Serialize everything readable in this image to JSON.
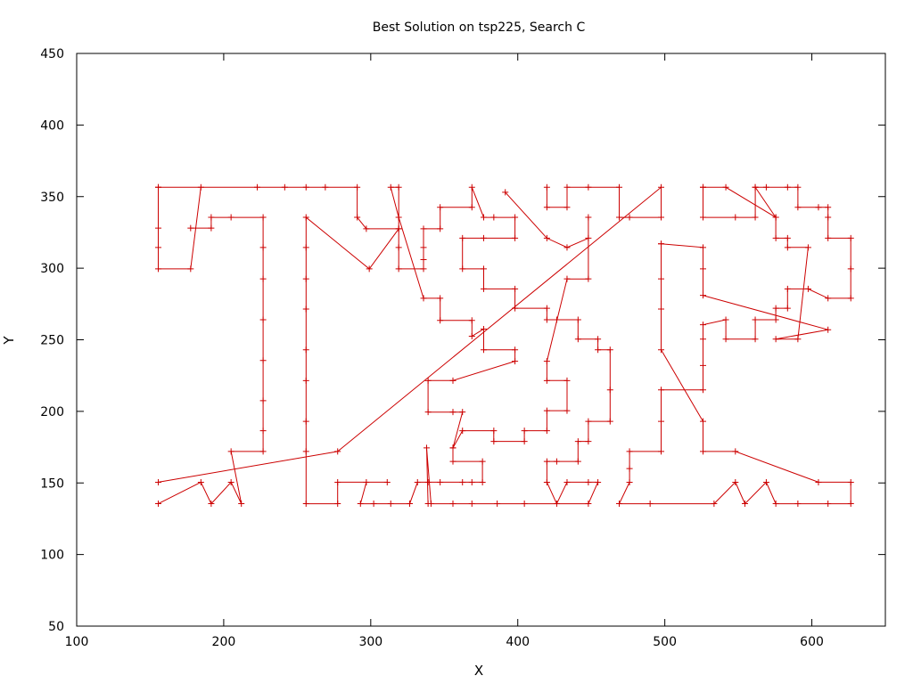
{
  "chart_data": {
    "type": "line",
    "title": "Best Solution on tsp225, Search C",
    "xlabel": "X",
    "ylabel": "Y",
    "xlim": [
      100,
      650
    ],
    "ylim": [
      50,
      450
    ],
    "xticks": [
      100,
      200,
      300,
      400,
      500,
      600
    ],
    "yticks": [
      50,
      100,
      150,
      200,
      250,
      300,
      350,
      400,
      450
    ],
    "grid": false,
    "legend": "none",
    "colors": {
      "tour": "#cc0000",
      "axis": "#000000"
    },
    "tour_segments": [
      [
        [
          155.5,
          356.5
        ],
        [
          222.8,
          356.5
        ],
        [
          241.5,
          356.5
        ],
        [
          256.0,
          356.5
        ],
        [
          269.1,
          356.5
        ],
        [
          290.8,
          356.5
        ],
        [
          290.8,
          335.5
        ],
        [
          297.0,
          327.5
        ],
        [
          319.0,
          327.5
        ],
        [
          319.0,
          356.5
        ],
        [
          313.6,
          356.5
        ],
        [
          319.0,
          335.5
        ],
        [
          335.9,
          279.0
        ],
        [
          347.2,
          279.0
        ],
        [
          347.2,
          263.5
        ],
        [
          368.8,
          263.5
        ],
        [
          368.8,
          252.5
        ],
        [
          376.8,
          257.5
        ],
        [
          376.8,
          243.0
        ],
        [
          398.1,
          243.0
        ],
        [
          398.1,
          235.0
        ],
        [
          355.9,
          221.5
        ],
        [
          339.0,
          221.5
        ],
        [
          339.0,
          199.5
        ],
        [
          355.9,
          199.5
        ],
        [
          362.4,
          199.5
        ],
        [
          355.9,
          174.5
        ],
        [
          355.9,
          165.0
        ],
        [
          376.0,
          165.0
        ],
        [
          376.0,
          150.5
        ],
        [
          368.8,
          150.5
        ],
        [
          362.4,
          150.5
        ],
        [
          347.2,
          150.5
        ],
        [
          339.0,
          150.5
        ],
        [
          331.8,
          150.5
        ],
        [
          326.5,
          135.5
        ],
        [
          313.6,
          135.5
        ],
        [
          302.0,
          135.5
        ],
        [
          293.0,
          135.5
        ],
        [
          297.0,
          150.5
        ],
        [
          311.2,
          150.5
        ],
        [
          277.5,
          150.5
        ],
        [
          277.5,
          135.5
        ],
        [
          256.0,
          135.5
        ],
        [
          256.0,
          172.0
        ],
        [
          256.0,
          193.0
        ],
        [
          256.0,
          221.5
        ],
        [
          256.0,
          243.0
        ],
        [
          256.0,
          271.5
        ],
        [
          256.0,
          292.5
        ],
        [
          256.0,
          314.5
        ],
        [
          256.0,
          335.5
        ],
        [
          299.0,
          299.5
        ],
        [
          319.0,
          327.5
        ],
        [
          319.0,
          314.5
        ],
        [
          319.0,
          299.5
        ],
        [
          335.9,
          299.5
        ],
        [
          335.9,
          306.0
        ],
        [
          335.9,
          314.5
        ],
        [
          335.9,
          327.5
        ],
        [
          347.2,
          327.5
        ],
        [
          347.2,
          342.5
        ],
        [
          368.8,
          342.5
        ],
        [
          368.8,
          356.5
        ],
        [
          376.8,
          335.5
        ],
        [
          383.7,
          335.5
        ],
        [
          398.1,
          335.5
        ],
        [
          398.1,
          321.0
        ],
        [
          376.8,
          321.0
        ],
        [
          362.4,
          321.0
        ],
        [
          362.4,
          299.5
        ],
        [
          376.8,
          299.5
        ],
        [
          376.8,
          285.5
        ],
        [
          398.1,
          285.5
        ],
        [
          398.1,
          272.0
        ],
        [
          419.8,
          272.0
        ],
        [
          419.8,
          264.0
        ],
        [
          426.5,
          264.0
        ],
        [
          441.0,
          264.0
        ],
        [
          441.0,
          250.5
        ],
        [
          454.5,
          250.5
        ],
        [
          454.5,
          243.0
        ],
        [
          462.8,
          243.0
        ],
        [
          462.8,
          215.0
        ],
        [
          462.8,
          193.0
        ],
        [
          448.0,
          193.0
        ],
        [
          448.0,
          179.0
        ],
        [
          441.0,
          179.0
        ],
        [
          441.0,
          165.0
        ],
        [
          426.5,
          165.0
        ],
        [
          419.8,
          165.0
        ],
        [
          419.8,
          150.5
        ],
        [
          426.5,
          135.5
        ],
        [
          433.5,
          150.5
        ],
        [
          448.0,
          150.5
        ],
        [
          454.5,
          150.5
        ],
        [
          448.0,
          135.5
        ],
        [
          404.5,
          135.5
        ],
        [
          386.0,
          135.5
        ],
        [
          368.8,
          135.5
        ],
        [
          355.9,
          135.5
        ],
        [
          341.0,
          135.5
        ],
        [
          338.0,
          174.5
        ],
        [
          339.0,
          135.5
        ]
      ],
      [
        [
          155.5,
          356.5
        ],
        [
          155.5,
          328.0
        ],
        [
          155.5,
          314.5
        ],
        [
          155.5,
          299.5
        ],
        [
          177.5,
          299.5
        ],
        [
          184.5,
          356.5
        ]
      ],
      [
        [
          177.5,
          328.0
        ],
        [
          191.5,
          328.0
        ],
        [
          191.5,
          335.5
        ],
        [
          205.0,
          335.5
        ],
        [
          226.8,
          335.5
        ],
        [
          226.8,
          314.5
        ],
        [
          226.8,
          292.5
        ],
        [
          226.8,
          264.0
        ],
        [
          226.8,
          235.5
        ],
        [
          226.8,
          207.5
        ],
        [
          226.8,
          186.5
        ],
        [
          226.8,
          172.0
        ],
        [
          205.0,
          172.0
        ],
        [
          212.0,
          135.5
        ],
        [
          205.0,
          150.5
        ],
        [
          191.5,
          135.5
        ],
        [
          184.5,
          150.5
        ],
        [
          155.5,
          135.5
        ]
      ],
      [
        [
          155.5,
          150.5
        ],
        [
          277.5,
          172.0
        ],
        [
          497.5,
          356.5
        ],
        [
          497.5,
          335.5
        ],
        [
          476.0,
          335.5
        ],
        [
          469.0,
          335.5
        ],
        [
          469.0,
          356.5
        ],
        [
          448.0,
          356.5
        ],
        [
          433.5,
          356.5
        ],
        [
          433.5,
          342.5
        ],
        [
          419.8,
          342.5
        ],
        [
          419.8,
          356.5
        ]
      ],
      [
        [
          391.5,
          353.0
        ],
        [
          419.8,
          321.0
        ],
        [
          433.5,
          314.5
        ],
        [
          448.0,
          321.0
        ],
        [
          448.0,
          335.5
        ],
        [
          448.0,
          292.5
        ],
        [
          433.5,
          292.5
        ],
        [
          419.8,
          235.0
        ],
        [
          419.8,
          221.5
        ],
        [
          433.5,
          221.5
        ],
        [
          433.5,
          200.5
        ],
        [
          419.8,
          200.5
        ],
        [
          419.8,
          186.5
        ],
        [
          404.5,
          186.5
        ],
        [
          404.5,
          179.0
        ],
        [
          383.7,
          179.0
        ],
        [
          383.7,
          186.5
        ],
        [
          362.4,
          186.5
        ],
        [
          355.9,
          174.5
        ]
      ],
      [
        [
          497.5,
          317.0
        ],
        [
          526.0,
          314.5
        ],
        [
          526.0,
          299.5
        ],
        [
          526.0,
          281.0
        ],
        [
          611.0,
          257.0
        ],
        [
          575.5,
          250.5
        ],
        [
          590.5,
          250.5
        ],
        [
          597.5,
          314.5
        ],
        [
          583.5,
          314.5
        ],
        [
          583.5,
          321.0
        ],
        [
          575.5,
          321.0
        ],
        [
          575.5,
          335.5
        ],
        [
          561.5,
          356.5
        ],
        [
          569.0,
          356.5
        ],
        [
          583.5,
          356.5
        ],
        [
          590.5,
          356.5
        ],
        [
          590.5,
          342.5
        ],
        [
          604.5,
          342.5
        ],
        [
          611.0,
          342.5
        ],
        [
          611.0,
          335.5
        ],
        [
          611.0,
          321.0
        ],
        [
          626.5,
          321.0
        ],
        [
          626.5,
          299.5
        ],
        [
          626.5,
          279.0
        ],
        [
          611.0,
          279.0
        ],
        [
          597.5,
          285.5
        ],
        [
          583.5,
          285.5
        ],
        [
          583.5,
          272.0
        ],
        [
          575.5,
          272.0
        ],
        [
          575.5,
          264.0
        ],
        [
          561.5,
          264.0
        ],
        [
          561.5,
          250.5
        ],
        [
          541.5,
          250.5
        ],
        [
          541.5,
          264.0
        ],
        [
          526.0,
          260.5
        ],
        [
          526.0,
          250.5
        ],
        [
          526.0,
          232.0
        ],
        [
          526.0,
          215.0
        ],
        [
          497.5,
          215.0
        ],
        [
          497.5,
          193.0
        ],
        [
          497.5,
          172.0
        ],
        [
          476.0,
          172.0
        ],
        [
          476.0,
          160.0
        ],
        [
          476.0,
          150.5
        ],
        [
          469.0,
          135.5
        ],
        [
          490.0,
          135.5
        ],
        [
          533.5,
          135.5
        ],
        [
          548.0,
          150.5
        ],
        [
          554.5,
          135.5
        ],
        [
          569.0,
          150.5
        ],
        [
          575.5,
          135.5
        ],
        [
          590.5,
          135.5
        ],
        [
          611.0,
          135.5
        ],
        [
          626.5,
          135.5
        ],
        [
          626.5,
          150.5
        ],
        [
          604.5,
          150.5
        ],
        [
          548.0,
          172.0
        ],
        [
          526.0,
          172.0
        ],
        [
          526.0,
          193.0
        ],
        [
          497.5,
          243.0
        ],
        [
          497.5,
          271.5
        ],
        [
          497.5,
          292.5
        ],
        [
          497.5,
          317.0
        ]
      ],
      [
        [
          526.0,
          356.5
        ],
        [
          541.5,
          356.5
        ],
        [
          575.5,
          335.5
        ]
      ],
      [
        [
          526.0,
          356.5
        ],
        [
          526.0,
          335.5
        ],
        [
          548.0,
          335.5
        ],
        [
          561.5,
          335.5
        ],
        [
          561.5,
          356.5
        ]
      ]
    ]
  }
}
